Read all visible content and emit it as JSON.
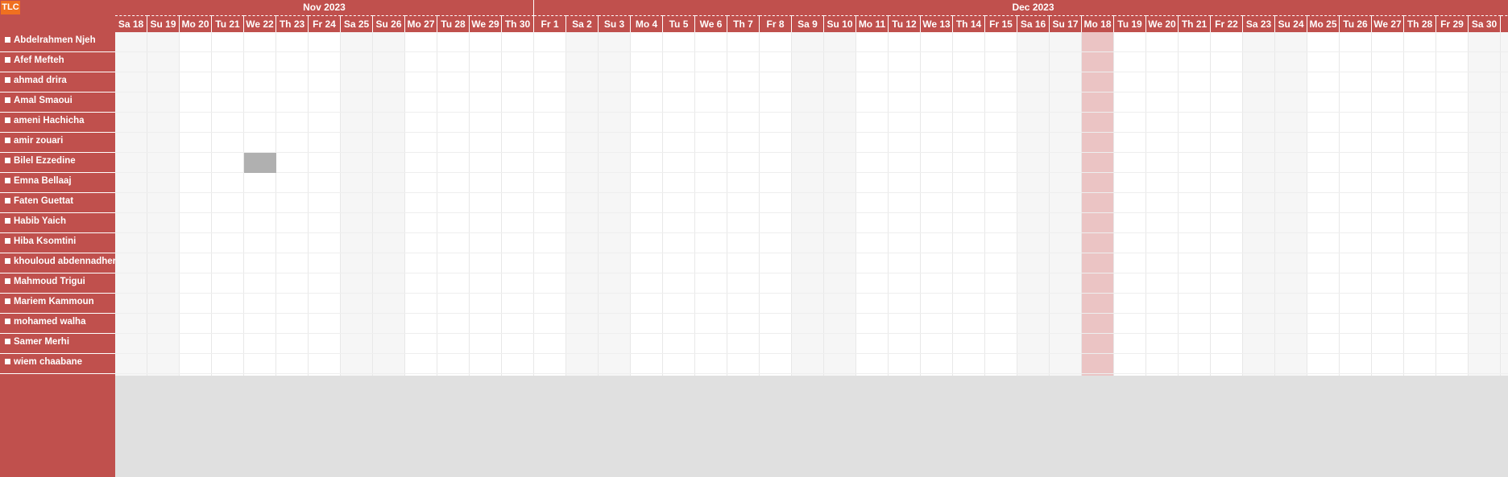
{
  "app": {
    "logo_text": "TLC"
  },
  "timeline": {
    "months": [
      {
        "label": "Nov 2023",
        "span_days": 13
      },
      {
        "label": "Dec 2023",
        "span_days": 31
      }
    ],
    "days": [
      {
        "label": "Sa 18",
        "weekend": true
      },
      {
        "label": "Su 19",
        "weekend": true
      },
      {
        "label": "Mo 20"
      },
      {
        "label": "Tu 21"
      },
      {
        "label": "We 22"
      },
      {
        "label": "Th 23"
      },
      {
        "label": "Fr 24"
      },
      {
        "label": "Sa 25",
        "weekend": true
      },
      {
        "label": "Su 26",
        "weekend": true
      },
      {
        "label": "Mo 27"
      },
      {
        "label": "Tu 28"
      },
      {
        "label": "We 29"
      },
      {
        "label": "Th 30"
      },
      {
        "label": "Fr 1"
      },
      {
        "label": "Sa 2",
        "weekend": true
      },
      {
        "label": "Su 3",
        "weekend": true
      },
      {
        "label": "Mo 4"
      },
      {
        "label": "Tu 5"
      },
      {
        "label": "We 6"
      },
      {
        "label": "Th 7"
      },
      {
        "label": "Fr 8"
      },
      {
        "label": "Sa 9",
        "weekend": true
      },
      {
        "label": "Su 10",
        "weekend": true
      },
      {
        "label": "Mo 11"
      },
      {
        "label": "Tu 12"
      },
      {
        "label": "We 13"
      },
      {
        "label": "Th 14"
      },
      {
        "label": "Fr 15"
      },
      {
        "label": "Sa 16",
        "weekend": true
      },
      {
        "label": "Su 17",
        "weekend": true
      },
      {
        "label": "Mo 18",
        "today": true
      },
      {
        "label": "Tu 19"
      },
      {
        "label": "We 20"
      },
      {
        "label": "Th 21"
      },
      {
        "label": "Fr 22"
      },
      {
        "label": "Sa 23",
        "weekend": true
      },
      {
        "label": "Su 24",
        "weekend": true
      },
      {
        "label": "Mo 25"
      },
      {
        "label": "Tu 26"
      },
      {
        "label": "We 27"
      },
      {
        "label": "Th 28"
      },
      {
        "label": "Fr 29"
      },
      {
        "label": "Sa 30",
        "weekend": true
      },
      {
        "label": "S",
        "weekend": true
      }
    ]
  },
  "resources": [
    "Abdelrahmen Njeh",
    "Afef Mefteh",
    "ahmad drira",
    "Amal Smaoui",
    "ameni Hachicha",
    "amir zouari",
    "Bilel Ezzedine",
    "Emna Bellaaj",
    "Faten Guettat",
    "Habib Yaich",
    "Hiba Ksomtini",
    "khouloud abdennadher",
    "Mahmoud Trigui",
    "Mariem Kammoun",
    "mohamed walha",
    "Samer Merhi",
    "wiem chaabane"
  ],
  "events": [
    {
      "resource": "Bilel Ezzedine",
      "day": "We 22",
      "duration_days": 1,
      "color": "#b0b0b0"
    }
  ],
  "colors": {
    "header": "#c0504d",
    "today": "#ebc4c4",
    "weekend": "#f6f6f6",
    "logo": "#f07020",
    "event": "#b0b0b0"
  }
}
